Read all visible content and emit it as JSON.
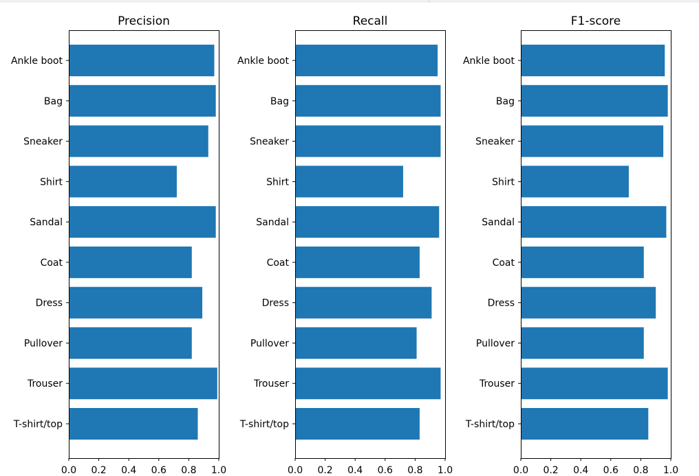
{
  "chart_data": [
    {
      "type": "bar",
      "orientation": "horizontal",
      "title": "Precision",
      "categories": [
        "T-shirt/top",
        "Trouser",
        "Pullover",
        "Dress",
        "Coat",
        "Sandal",
        "Shirt",
        "Sneaker",
        "Bag",
        "Ankle boot"
      ],
      "values": [
        0.86,
        0.99,
        0.82,
        0.89,
        0.82,
        0.98,
        0.72,
        0.93,
        0.98,
        0.97
      ],
      "xlim": [
        0,
        1.0
      ],
      "xticks": [
        "0.0",
        "0.2",
        "0.4",
        "0.6",
        "0.8",
        "1.0"
      ],
      "grid": false,
      "bar_color": "#1f77b4"
    },
    {
      "type": "bar",
      "orientation": "horizontal",
      "title": "Recall",
      "categories": [
        "T-shirt/top",
        "Trouser",
        "Pullover",
        "Dress",
        "Coat",
        "Sandal",
        "Shirt",
        "Sneaker",
        "Bag",
        "Ankle boot"
      ],
      "values": [
        0.83,
        0.97,
        0.81,
        0.91,
        0.83,
        0.96,
        0.72,
        0.97,
        0.97,
        0.95
      ],
      "xlim": [
        0,
        1.0
      ],
      "xticks": [
        "0.0",
        "0.2",
        "0.4",
        "0.6",
        "0.8",
        "1.0"
      ],
      "grid": false,
      "bar_color": "#1f77b4"
    },
    {
      "type": "bar",
      "orientation": "horizontal",
      "title": "F1-score",
      "categories": [
        "T-shirt/top",
        "Trouser",
        "Pullover",
        "Dress",
        "Coat",
        "Sandal",
        "Shirt",
        "Sneaker",
        "Bag",
        "Ankle boot"
      ],
      "values": [
        0.85,
        0.98,
        0.82,
        0.9,
        0.82,
        0.97,
        0.72,
        0.95,
        0.98,
        0.96
      ],
      "xlim": [
        0,
        1.0
      ],
      "xticks": [
        "0.0",
        "0.2",
        "0.4",
        "0.6",
        "0.8",
        "1.0"
      ],
      "grid": false,
      "bar_color": "#1f77b4"
    }
  ]
}
